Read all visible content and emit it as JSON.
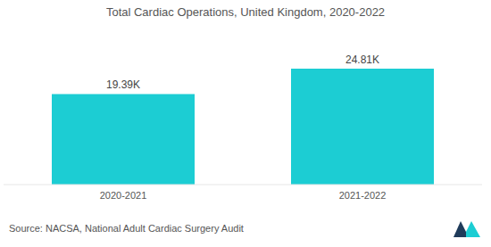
{
  "chart_data": {
    "type": "bar",
    "title": "Total Cardiac Operations, United Kingdom, 2020-2022",
    "categories": [
      "2020-2021",
      "2021-2022"
    ],
    "values": [
      19390,
      24810
    ],
    "value_labels": [
      "19.39K",
      "24.81K"
    ],
    "color": "#1ccdd3",
    "ylim": [
      0,
      25000
    ],
    "grid": false,
    "data_labels": true,
    "tick_labels": "x",
    "source": "Source: NACSA, National Adult Cardiac Surgery Audit"
  }
}
